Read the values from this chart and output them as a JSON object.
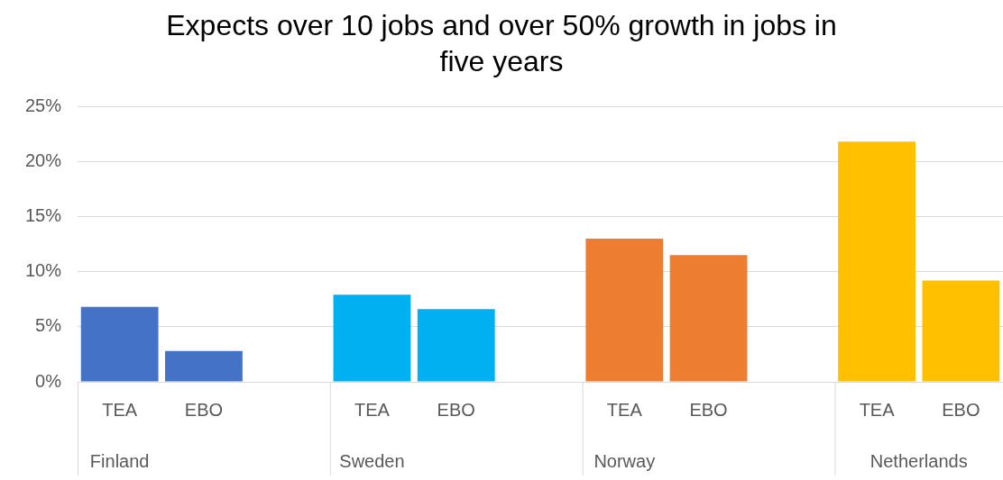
{
  "chart_data": {
    "type": "bar",
    "title": "Expects over 10 jobs and over 50% growth in jobs in five years",
    "categories": [
      "TEA",
      "EBO",
      null,
      "TEA",
      "EBO",
      null,
      "TEA",
      "EBO",
      null,
      "TEA",
      "EBO"
    ],
    "values": [
      6.8,
      2.8,
      null,
      7.9,
      6.6,
      null,
      13.0,
      11.5,
      null,
      21.8,
      9.2
    ],
    "colors": [
      "#4472c4",
      "#4472c4",
      "#4472c4",
      "#00b0f0",
      "#00b0f0",
      "#00b0f0",
      "#ed7d31",
      "#ed7d31",
      "#ed7d31",
      "#ffc000",
      "#ffc000"
    ],
    "annotations": [
      "Finland",
      "Sweden",
      "Norway",
      "Netherlands"
    ],
    "ylim": [
      0,
      25
    ],
    "yticks": [
      {
        "value": 0,
        "label": "0%"
      },
      {
        "value": 5,
        "label": "5%"
      },
      {
        "value": 10,
        "label": "10%"
      },
      {
        "value": 15,
        "label": "15%"
      },
      {
        "value": 20,
        "label": "20%"
      },
      {
        "value": 25,
        "label": "25%"
      }
    ],
    "grid": "y",
    "legend": false
  }
}
